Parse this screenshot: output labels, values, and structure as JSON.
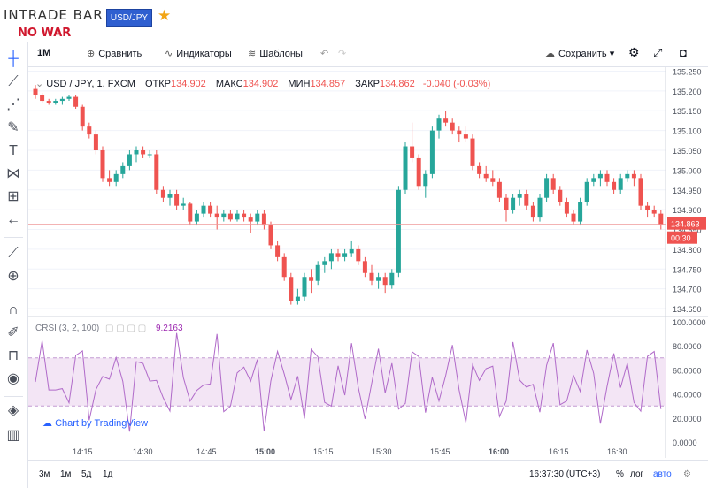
{
  "brand": {
    "logo": "INTRADE BAR",
    "slogan": "NO WAR",
    "pair_button": "USD/JPY"
  },
  "toolbar": {
    "interval": "1M",
    "compare_label": "Сравнить",
    "indicators_label": "Индикаторы",
    "templates_label": "Шаблоны",
    "save_label": "Сохранить"
  },
  "legend": {
    "symbol": "USD / JPY, 1, FXCM",
    "open_label": "ОТКР",
    "open": "134.902",
    "high_label": "МАКС",
    "high": "134.902",
    "low_label": "МИН",
    "low": "134.857",
    "close_label": "ЗАКР",
    "close": "134.862",
    "change": "-0.040 (-0.03%)"
  },
  "price_axis": [
    "135.250",
    "135.200",
    "135.150",
    "135.100",
    "135.050",
    "135.000",
    "134.950",
    "134.900",
    "134.850",
    "134.800",
    "134.750",
    "134.700",
    "134.650"
  ],
  "current_price": {
    "value": "134.863",
    "countdown": "00:30"
  },
  "crsi": {
    "title": "CRSI (3, 2, 100)",
    "value": "9.2163",
    "axis": [
      "100.0000",
      "80.0000",
      "60.0000",
      "40.0000",
      "20.0000",
      "0.0000"
    ]
  },
  "time_axis": [
    "14:15",
    "14:30",
    "14:45",
    "15:00",
    "15:15",
    "15:30",
    "15:45",
    "16:00",
    "16:15",
    "16:30"
  ],
  "tv_badge": "Chart by TradingView",
  "bottom": {
    "ranges": [
      "3м",
      "1м",
      "5д",
      "1д"
    ],
    "clock": "16:37:30 (UTC+3)",
    "percent": "%",
    "log": "лог",
    "auto": "авто"
  },
  "colors": {
    "up": "#26a69a",
    "down": "#ef5350",
    "crsi_line": "#b06ac9",
    "crsi_band": "#f3e5f5",
    "pair_button": "#2f5fd0"
  },
  "chart_data": {
    "type": "candlestick",
    "ylim": [
      134.63,
      135.26
    ],
    "candles": [
      [
        135.205,
        135.215,
        135.18,
        135.19
      ],
      [
        135.19,
        135.195,
        135.17,
        135.175
      ],
      [
        135.175,
        135.18,
        135.165,
        135.17
      ],
      [
        135.17,
        135.18,
        135.165,
        135.175
      ],
      [
        135.175,
        135.185,
        135.165,
        135.18
      ],
      [
        135.18,
        135.19,
        135.175,
        135.185
      ],
      [
        135.185,
        135.19,
        135.155,
        135.16
      ],
      [
        135.16,
        135.165,
        135.1,
        135.11
      ],
      [
        135.11,
        135.12,
        135.08,
        135.09
      ],
      [
        135.09,
        135.1,
        135.04,
        135.05
      ],
      [
        135.05,
        135.06,
        134.97,
        134.98
      ],
      [
        134.98,
        135.0,
        134.96,
        134.97
      ],
      [
        134.97,
        135.0,
        134.96,
        134.99
      ],
      [
        134.99,
        135.02,
        134.98,
        135.01
      ],
      [
        135.01,
        135.05,
        135.0,
        135.04
      ],
      [
        135.04,
        135.06,
        135.02,
        135.05
      ],
      [
        135.05,
        135.06,
        135.03,
        135.04
      ],
      [
        135.04,
        135.05,
        135.03,
        135.04
      ],
      [
        135.04,
        135.05,
        134.94,
        134.95
      ],
      [
        134.95,
        134.96,
        134.92,
        134.93
      ],
      [
        134.93,
        134.95,
        134.91,
        134.94
      ],
      [
        134.94,
        134.95,
        134.9,
        134.91
      ],
      [
        134.91,
        134.93,
        134.9,
        134.915
      ],
      [
        134.915,
        134.92,
        134.86,
        134.87
      ],
      [
        134.87,
        134.9,
        134.86,
        134.89
      ],
      [
        134.89,
        134.92,
        134.88,
        134.91
      ],
      [
        134.91,
        134.92,
        134.88,
        134.89
      ],
      [
        134.89,
        134.91,
        134.85,
        134.88
      ],
      [
        134.88,
        134.9,
        134.87,
        134.89
      ],
      [
        134.89,
        134.9,
        134.87,
        134.875
      ],
      [
        134.875,
        134.9,
        134.87,
        134.89
      ],
      [
        134.89,
        134.9,
        134.87,
        134.88
      ],
      [
        134.88,
        134.89,
        134.84,
        134.87
      ],
      [
        134.87,
        134.9,
        134.86,
        134.89
      ],
      [
        134.89,
        134.9,
        134.85,
        134.86
      ],
      [
        134.86,
        134.87,
        134.8,
        134.81
      ],
      [
        134.81,
        134.82,
        134.77,
        134.78
      ],
      [
        134.78,
        134.79,
        134.72,
        134.73
      ],
      [
        134.73,
        134.74,
        134.66,
        134.67
      ],
      [
        134.67,
        134.7,
        134.66,
        134.68
      ],
      [
        134.68,
        134.74,
        134.67,
        134.73
      ],
      [
        134.73,
        134.75,
        134.69,
        134.72
      ],
      [
        134.72,
        134.77,
        134.71,
        134.76
      ],
      [
        134.76,
        134.78,
        134.74,
        134.77
      ],
      [
        134.77,
        134.8,
        134.75,
        134.79
      ],
      [
        134.79,
        134.8,
        134.77,
        134.78
      ],
      [
        134.78,
        134.8,
        134.77,
        134.79
      ],
      [
        134.79,
        134.82,
        134.78,
        134.8
      ],
      [
        134.8,
        134.81,
        134.76,
        134.77
      ],
      [
        134.77,
        134.78,
        134.73,
        134.74
      ],
      [
        134.74,
        134.76,
        134.71,
        134.72
      ],
      [
        134.72,
        134.74,
        134.7,
        134.73
      ],
      [
        134.73,
        134.74,
        134.69,
        134.71
      ],
      [
        134.71,
        134.75,
        134.7,
        134.74
      ],
      [
        134.74,
        134.96,
        134.73,
        134.95
      ],
      [
        134.95,
        135.07,
        134.94,
        135.06
      ],
      [
        135.06,
        135.12,
        135.02,
        135.03
      ],
      [
        135.03,
        135.04,
        134.95,
        134.96
      ],
      [
        134.96,
        135.0,
        134.93,
        134.99
      ],
      [
        134.99,
        135.11,
        134.98,
        135.1
      ],
      [
        135.1,
        135.14,
        135.08,
        135.13
      ],
      [
        135.13,
        135.15,
        135.11,
        135.12
      ],
      [
        135.12,
        135.13,
        135.09,
        135.1
      ],
      [
        135.1,
        135.11,
        135.07,
        135.09
      ],
      [
        135.09,
        135.11,
        135.07,
        135.08
      ],
      [
        135.08,
        135.09,
        135.0,
        135.01
      ],
      [
        135.01,
        135.02,
        134.98,
        134.99
      ],
      [
        134.99,
        135.01,
        134.97,
        134.98
      ],
      [
        134.98,
        135.0,
        134.96,
        134.97
      ],
      [
        134.97,
        134.98,
        134.92,
        134.93
      ],
      [
        134.93,
        134.94,
        134.87,
        134.9
      ],
      [
        134.9,
        134.94,
        134.89,
        134.93
      ],
      [
        134.93,
        134.95,
        134.91,
        134.94
      ],
      [
        134.94,
        134.95,
        134.9,
        134.91
      ],
      [
        134.91,
        134.92,
        134.87,
        134.88
      ],
      [
        134.88,
        134.94,
        134.87,
        134.93
      ],
      [
        134.93,
        134.99,
        134.92,
        134.98
      ],
      [
        134.98,
        134.99,
        134.94,
        134.95
      ],
      [
        134.95,
        134.96,
        134.91,
        134.92
      ],
      [
        134.92,
        134.93,
        134.88,
        134.89
      ],
      [
        134.89,
        134.9,
        134.86,
        134.87
      ],
      [
        134.87,
        134.93,
        134.86,
        134.92
      ],
      [
        134.92,
        134.98,
        134.91,
        134.97
      ],
      [
        134.97,
        134.99,
        134.96,
        134.98
      ],
      [
        134.98,
        135.0,
        134.96,
        134.99
      ],
      [
        134.99,
        135.0,
        134.96,
        134.97
      ],
      [
        134.97,
        134.98,
        134.94,
        134.95
      ],
      [
        134.95,
        134.99,
        134.94,
        134.98
      ],
      [
        134.98,
        135.0,
        134.97,
        134.99
      ],
      [
        134.99,
        135.0,
        134.96,
        134.98
      ],
      [
        134.98,
        134.99,
        134.9,
        134.91
      ],
      [
        134.91,
        134.92,
        134.88,
        134.9
      ],
      [
        134.9,
        134.91,
        134.88,
        134.89
      ],
      [
        134.89,
        134.9,
        134.85,
        134.863
      ]
    ]
  }
}
